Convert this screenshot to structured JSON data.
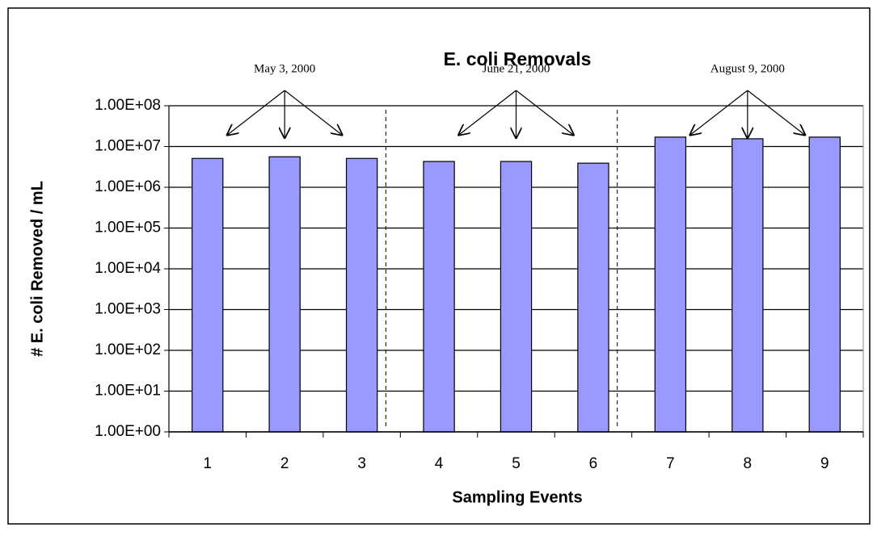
{
  "chart_data": {
    "type": "bar",
    "title": "E. coli Removals",
    "x_label": "Sampling Events",
    "y_label": "# E. coli Removed / mL",
    "annotations": [
      "May 3, 2000",
      "June 21, 2000",
      "August 9, 2000"
    ],
    "categories": [
      "1",
      "2",
      "3",
      "4",
      "5",
      "6",
      "7",
      "8",
      "9"
    ],
    "values": [
      5100000,
      5600000,
      5100000,
      4300000,
      4300000,
      3900000,
      17000000,
      15500000,
      17000000
    ],
    "color": "#9999ff",
    "log_scale": true,
    "grid": true,
    "ylim": [
      1,
      100000000
    ],
    "yticks": [
      {
        "value": 1,
        "label": "1.00E+00"
      },
      {
        "value": 10,
        "label": "1.00E+01"
      },
      {
        "value": 100,
        "label": "1.00E+02"
      },
      {
        "value": 1000,
        "label": "1.00E+03"
      },
      {
        "value": 10000,
        "label": "1.00E+04"
      },
      {
        "value": 100000,
        "label": "1.00E+05"
      },
      {
        "value": 1000000,
        "label": "1.00E+06"
      },
      {
        "value": 10000000,
        "label": "1.00E+07"
      },
      {
        "value": 100000000,
        "label": "1.00E+08"
      }
    ]
  }
}
